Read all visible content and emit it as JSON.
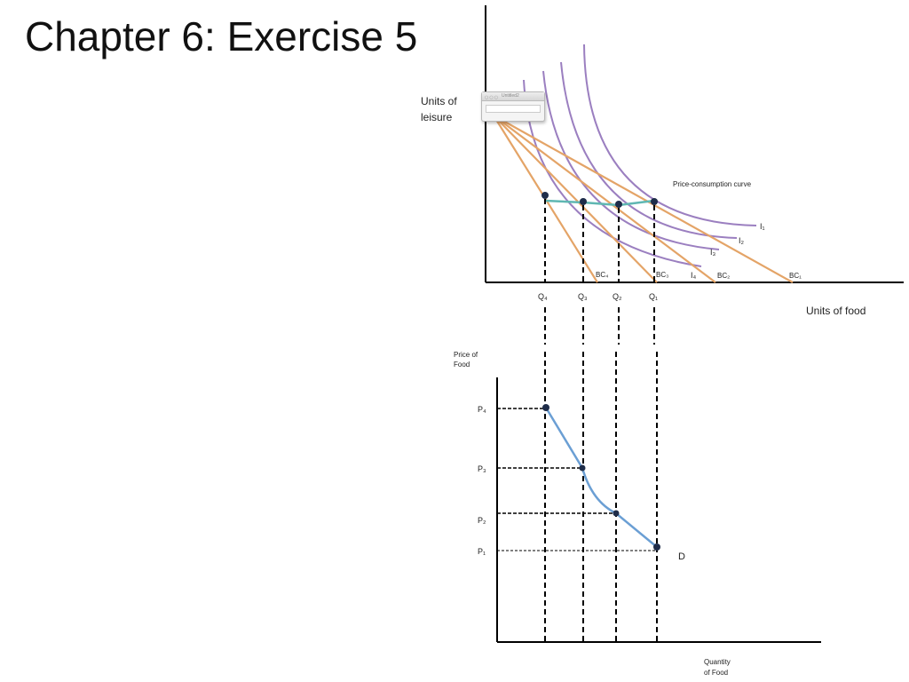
{
  "slide": {
    "title": "Chapter 6: Exercise 5"
  },
  "popup": {
    "title": "Untitled2",
    "dots": "○○○"
  },
  "top_graph": {
    "y_axis_label": [
      "Units of",
      "leisure"
    ],
    "x_axis_label": "Units of food",
    "pcc_label": "Price-consumption curve",
    "indifference_labels": [
      "I₁",
      "I₂",
      "I₃",
      "I₄"
    ],
    "budget_labels": [
      "BC₄",
      "BC₃",
      "BC₂",
      "BC₁"
    ],
    "q_labels": [
      "Q₄",
      "Q₃",
      "Q₂",
      "Q₁"
    ]
  },
  "bottom_graph": {
    "y_axis_label": [
      "Price of",
      "Food"
    ],
    "x_axis_label": [
      "Quantity",
      "of Food"
    ],
    "p_labels": [
      "P₄",
      "P₃",
      "P₂",
      "P₁"
    ],
    "demand_label": "D"
  },
  "colors": {
    "budget": "#e4a467",
    "indifference": "#9b7fc0",
    "pcc": "#5fb7b2",
    "demand": "#6b9fd4",
    "point": "#1f2d4a",
    "axis": "#000000"
  }
}
